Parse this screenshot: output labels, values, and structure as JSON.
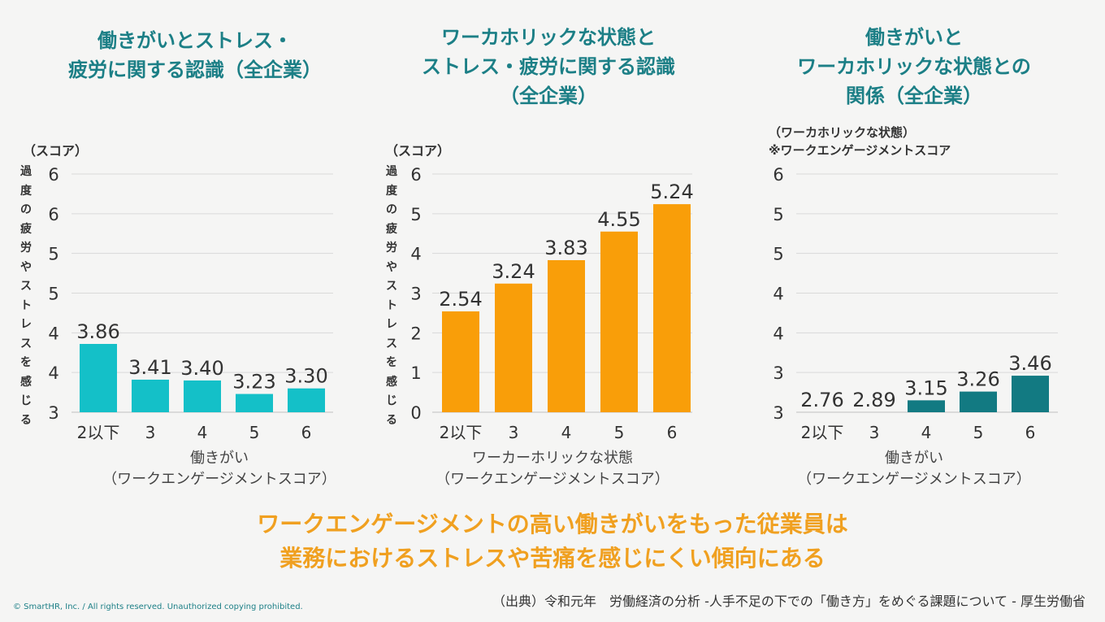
{
  "chart_data": [
    {
      "type": "bar",
      "title_lines": [
        "働きがいとストレス・",
        "疲労に関する認識（全企業）"
      ],
      "score_label": "（スコア）",
      "ylabel": "過度の疲労やストレスを感じる",
      "tick_labels": [
        "3",
        "4",
        "4",
        "5",
        "5",
        "6",
        "6"
      ],
      "ylim": [
        3,
        6
      ],
      "categories": [
        "2以下",
        "3",
        "4",
        "5",
        "6"
      ],
      "values": [
        3.86,
        3.41,
        3.4,
        3.23,
        3.3
      ],
      "value_labels": [
        "3.86",
        "3.41",
        "3.40",
        "3.23",
        "3.30"
      ],
      "xlabel_lines": [
        "働きがい",
        "（ワークエンゲージメントスコア）"
      ],
      "color": "#14c0c8"
    },
    {
      "type": "bar",
      "title_lines": [
        "ワーカホリックな状態と",
        "ストレス・疲労に関する認識",
        "（全企業）"
      ],
      "score_label": "（スコア）",
      "ylabel": "過度の疲労やストレスを感じる",
      "tick_labels": [
        "0",
        "1",
        "2",
        "3",
        "4",
        "5",
        "6"
      ],
      "ylim": [
        0,
        6
      ],
      "categories": [
        "2以下",
        "3",
        "4",
        "5",
        "6"
      ],
      "values": [
        2.54,
        3.24,
        3.83,
        4.55,
        5.24
      ],
      "value_labels": [
        "2.54",
        "3.24",
        "3.83",
        "4.55",
        "5.24"
      ],
      "xlabel_lines": [
        "ワーカーホリックな状態",
        "（ワークエンゲージメントスコア）"
      ],
      "color": "#f99e09"
    },
    {
      "type": "bar",
      "title_lines": [
        "働きがいと",
        "ワーカホリックな状態との",
        "関係（全企業）"
      ],
      "score_label_lines": [
        "（ワーカホリックな状態）",
        "※ワークエンゲージメントスコア"
      ],
      "tick_labels": [
        "3",
        "3",
        "4",
        "4",
        "5",
        "5",
        "6"
      ],
      "ylim": [
        3,
        6
      ],
      "categories": [
        "2以下",
        "3",
        "4",
        "5",
        "6"
      ],
      "values": [
        2.76,
        2.89,
        3.15,
        3.26,
        3.46
      ],
      "value_labels": [
        "2.76",
        "2.89",
        "3.15",
        "3.26",
        "3.46"
      ],
      "xlabel_lines": [
        "働きがい",
        "（ワークエンゲージメントスコア）"
      ],
      "color": "#127a82"
    }
  ],
  "conclusion_lines": [
    "ワークエンゲージメントの高い働きがいをもった従業員は",
    "業務におけるストレスや苦痛を感じにくい傾向にある"
  ],
  "source": "（出典）令和元年　労働経済の分析 -人手不足の下での「働き方」をめぐる課題について - 厚生労働省",
  "copyright": "© SmartHR, Inc. / All rights reserved. Unauthorized copying prohibited."
}
